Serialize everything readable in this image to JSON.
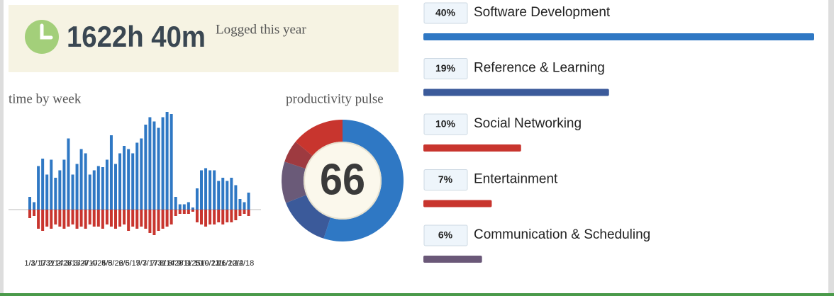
{
  "summary": {
    "total": "1622h 40m",
    "label": "Logged this year"
  },
  "time_by_week": {
    "type": "bar",
    "title": "time by week",
    "x_labels": [
      "1/3",
      "1/17",
      "1/31",
      "2/14",
      "2/28",
      "3/13",
      "3/27",
      "4/10",
      "4/24",
      "5/8",
      "5/22",
      "6/5",
      "6/19",
      "7/3",
      "7/17",
      "7/31",
      "8/14",
      "8/28",
      "9/11",
      "9/25",
      "10/9",
      "10/23",
      "11/6",
      "11/20",
      "12/4",
      "12/18"
    ],
    "ylim": [
      -20,
      50
    ],
    "series": [
      {
        "color": "#2f78c4",
        "values": [
          6,
          3.5,
          20.5,
          24,
          16.5,
          23.5,
          15,
          18.5,
          23.5,
          33.5,
          16.5,
          21.5,
          28.5,
          26.5,
          16.5,
          18.5,
          20.5,
          20,
          23.5,
          35,
          21.5,
          26.5,
          30,
          28.5,
          26.5,
          31.5,
          33.5,
          40,
          43.5,
          41.5,
          38.5,
          43.5,
          46,
          45,
          6,
          2.5,
          2.5,
          3.5,
          1,
          10,
          18.5,
          19.5,
          18.5,
          18.5,
          13.5,
          15,
          13.5,
          15,
          11.5,
          5,
          3.5,
          8
        ]
      },
      {
        "color": "#c8352e",
        "values": [
          -4,
          -3,
          -9,
          -10,
          -8,
          -9,
          -7,
          -8,
          -9,
          -8,
          -7,
          -9,
          -8,
          -9,
          -7,
          -8,
          -8,
          -9,
          -7,
          -8,
          -9,
          -8,
          -7,
          -10,
          -8,
          -9,
          -8,
          -9,
          -11,
          -12,
          -10,
          -9,
          -8,
          -7,
          -3,
          -2,
          -2,
          -2,
          -1,
          -6,
          -7,
          -8,
          -7,
          -7,
          -6,
          -7,
          -6,
          -6,
          -5,
          -3,
          -2,
          -3
        ]
      }
    ]
  },
  "productivity_pulse": {
    "type": "pie",
    "title": "productivity pulse",
    "score": 66,
    "values": [
      55,
      14,
      11,
      6,
      14
    ],
    "colors": [
      "#2f78c4",
      "#3b5a9a",
      "#6a5a78",
      "#9e3a40",
      "#c8352e"
    ]
  },
  "categories": {
    "type": "bar",
    "names": [
      "Software Development",
      "Reference & Learning",
      "Social Networking",
      "Entertainment",
      "Communication & Scheduling"
    ],
    "values": [
      40,
      19,
      10,
      7,
      6
    ],
    "value_labels": [
      "40%",
      "19%",
      "10%",
      "7%",
      "6%"
    ],
    "colors": [
      "#2f78c4",
      "#3b5a9a",
      "#c8352e",
      "#c8352e",
      "#6a5878"
    ]
  }
}
